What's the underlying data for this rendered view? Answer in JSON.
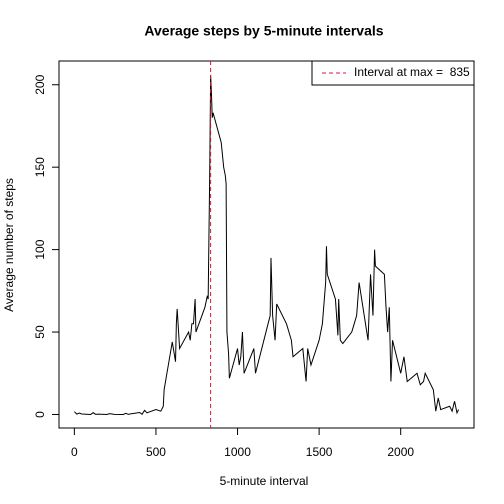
{
  "chart_data": {
    "type": "line",
    "title": "Average steps by 5-minute intervals",
    "xlabel": "5-minute interval",
    "ylabel": "Average number of steps",
    "x": [
      0,
      15,
      30,
      45,
      100,
      115,
      130,
      145,
      200,
      215,
      230,
      245,
      300,
      315,
      330,
      345,
      400,
      415,
      430,
      445,
      500,
      530,
      545,
      550,
      600,
      610,
      620,
      625,
      630,
      645,
      700,
      710,
      720,
      730,
      740,
      745,
      800,
      815,
      820,
      830,
      835,
      840,
      845,
      850,
      900,
      915,
      925,
      930,
      935,
      945,
      950,
      1000,
      1010,
      1020,
      1030,
      1040,
      1100,
      1110,
      1200,
      1205,
      1215,
      1230,
      1240,
      1300,
      1330,
      1340,
      1400,
      1420,
      1430,
      1450,
      1500,
      1520,
      1540,
      1545,
      1550,
      1600,
      1615,
      1620,
      1630,
      1645,
      1700,
      1715,
      1730,
      1745,
      1800,
      1815,
      1830,
      1840,
      1845,
      1900,
      1910,
      1920,
      1930,
      1940,
      1950,
      2000,
      2020,
      2040,
      2100,
      2120,
      2140,
      2150,
      2200,
      2215,
      2230,
      2245,
      2300,
      2315,
      2330,
      2345,
      2355
    ],
    "series": [
      {
        "name": "Average steps",
        "color": "#000000",
        "values": [
          1.7,
          0.2,
          0.9,
          0.3,
          0.0,
          1.1,
          0.1,
          0.2,
          0.0,
          0.5,
          0.3,
          0.1,
          0.0,
          0.7,
          0.1,
          0.4,
          1.2,
          0.1,
          2.5,
          1.0,
          3.0,
          2.0,
          5.0,
          15,
          44,
          38,
          32,
          55,
          64,
          40,
          50,
          45,
          55,
          55,
          70,
          50,
          65,
          72,
          70,
          150,
          206,
          195,
          180,
          183,
          165,
          150,
          145,
          140,
          50,
          37,
          22,
          40,
          30,
          35,
          50,
          25,
          40,
          25,
          60,
          95,
          60,
          45,
          67,
          55,
          45,
          35,
          40,
          20,
          40,
          30,
          45,
          55,
          80,
          102,
          85,
          70,
          48,
          70,
          45,
          43,
          50,
          55,
          60,
          80,
          45,
          85,
          60,
          100,
          90,
          85,
          65,
          50,
          65,
          20,
          45,
          25,
          35,
          20,
          25,
          18,
          20,
          25,
          15,
          2,
          10,
          3,
          5,
          2,
          8,
          1,
          3
        ]
      }
    ],
    "vline": 835,
    "vline_color": "#dc143c",
    "legend_label": "Interval at max =  835",
    "legend": "topright",
    "xlim": [
      -94.2,
      2449.2
    ],
    "xticks": [
      0,
      500,
      1000,
      1500,
      2000
    ],
    "ylim": [
      -8.2,
      214.4
    ],
    "yticks": [
      0,
      50,
      100,
      150,
      200
    ]
  }
}
